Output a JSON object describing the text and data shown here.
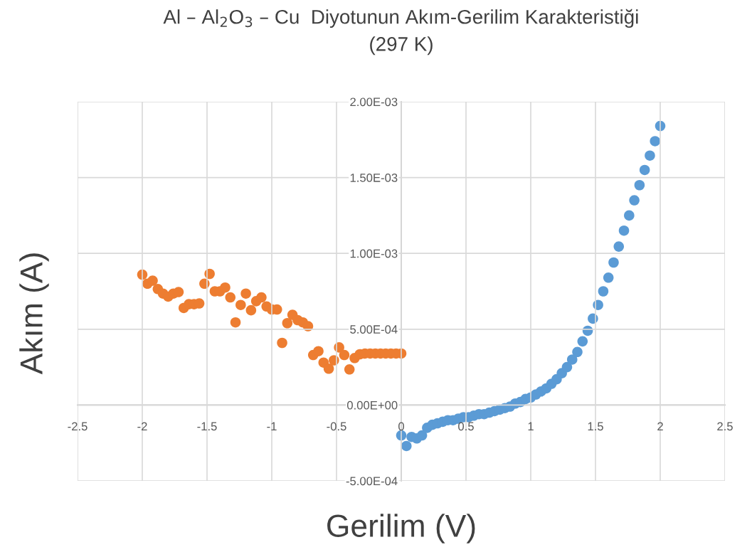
{
  "chart_data": {
    "type": "scatter",
    "title": "Al – Al$_{2}$O$_{3}$ – Cu  Diyotunun Akım-Gerilim Karakteristiği\n(297 K)",
    "xlabel": "Gerilim (V)",
    "ylabel": "Akım (A)",
    "series": [
      {
        "color": "#5b9bd5",
        "x": [
          0,
          0.04,
          0.08,
          0.12,
          0.16,
          0.2,
          0.24,
          0.28,
          0.32,
          0.36,
          0.4,
          0.44,
          0.48,
          0.52,
          0.56,
          0.6,
          0.64,
          0.68,
          0.72,
          0.76,
          0.8,
          0.84,
          0.88,
          0.92,
          0.96,
          1,
          1.04,
          1.08,
          1.12,
          1.16,
          1.2,
          1.24,
          1.28,
          1.32,
          1.36,
          1.4,
          1.44,
          1.48,
          1.52,
          1.56,
          1.6,
          1.64,
          1.68,
          1.72,
          1.76,
          1.8,
          1.84,
          1.88,
          1.92,
          1.96,
          2
        ],
        "values": [
          -0.0002,
          -0.00027,
          -0.00021,
          -0.00022,
          -0.0002,
          -0.00015,
          -0.00013,
          -0.00012,
          -0.00011,
          -0.0001,
          -0.0001,
          -9e-05,
          -8e-05,
          -8e-05,
          -7e-05,
          -6e-05,
          -6e-05,
          -5e-05,
          -4e-05,
          -3e-05,
          -2e-05,
          -1e-05,
          1e-05,
          2e-05,
          4e-05,
          5e-05,
          7e-05,
          9e-05,
          0.00011,
          0.00014,
          0.00017,
          0.00021,
          0.00025,
          0.0003,
          0.00035,
          0.00042,
          0.00049,
          0.00057,
          0.00066,
          0.00075,
          0.00084,
          0.00094,
          0.001045,
          0.00115,
          0.00125,
          0.00135,
          0.00145,
          0.00155,
          0.001645,
          0.00174,
          0.00184
        ]
      },
      {
        "color": "#ed7d31",
        "x": [
          -2,
          -1.96,
          -1.92,
          -1.88,
          -1.84,
          -1.8,
          -1.76,
          -1.72,
          -1.68,
          -1.64,
          -1.6,
          -1.56,
          -1.52,
          -1.48,
          -1.44,
          -1.4,
          -1.36,
          -1.32,
          -1.28,
          -1.24,
          -1.2,
          -1.16,
          -1.12,
          -1.08,
          -1.04,
          -1,
          -0.96,
          -0.92,
          -0.88,
          -0.84,
          -0.8,
          -0.76,
          -0.72,
          -0.68,
          -0.64,
          -0.6,
          -0.56,
          -0.52,
          -0.48,
          -0.44,
          -0.4,
          -0.36,
          -0.32,
          -0.28,
          -0.24,
          -0.2,
          -0.16,
          -0.12,
          -0.08,
          -0.04,
          0
        ],
        "values": [
          0.00086,
          0.0008,
          0.00082,
          0.000765,
          0.000735,
          0.000715,
          0.000735,
          0.000745,
          0.00064,
          0.000665,
          0.000665,
          0.00067,
          0.0008,
          0.000865,
          0.00075,
          0.00075,
          0.000775,
          0.00071,
          0.000545,
          0.00066,
          0.000735,
          0.000625,
          0.000685,
          0.00071,
          0.00065,
          0.00063,
          0.00063,
          0.00041,
          0.00054,
          0.000595,
          0.00056,
          0.000545,
          0.00052,
          0.00033,
          0.000355,
          0.00028,
          0.00024,
          0.000295,
          0.00038,
          0.00033,
          0.000235,
          0.00031,
          0.000335,
          0.00034,
          0.00034,
          0.00034,
          0.00034,
          0.00034,
          0.00034,
          0.00034,
          0.00034
        ]
      }
    ],
    "marker": "circle",
    "grid": true,
    "legend": false,
    "xlim": [
      -2.5,
      2.5
    ],
    "xticks": [
      -2.5,
      -2,
      -1.5,
      -1,
      -0.5,
      0,
      0.5,
      1,
      1.5,
      2,
      2.5
    ],
    "ylim": [
      -0.0005,
      0.002
    ],
    "yticks": [
      {
        "value": -0.0005,
        "label": "-5.00E-04"
      },
      {
        "value": 0,
        "label": "0.00E+00"
      },
      {
        "value": 0.0005,
        "label": "5.00E-04"
      },
      {
        "value": 0.001,
        "label": "1.00E-03"
      },
      {
        "value": 0.0015,
        "label": "1.50E-03"
      },
      {
        "value": 0.002,
        "label": "2.00E-03"
      }
    ]
  }
}
